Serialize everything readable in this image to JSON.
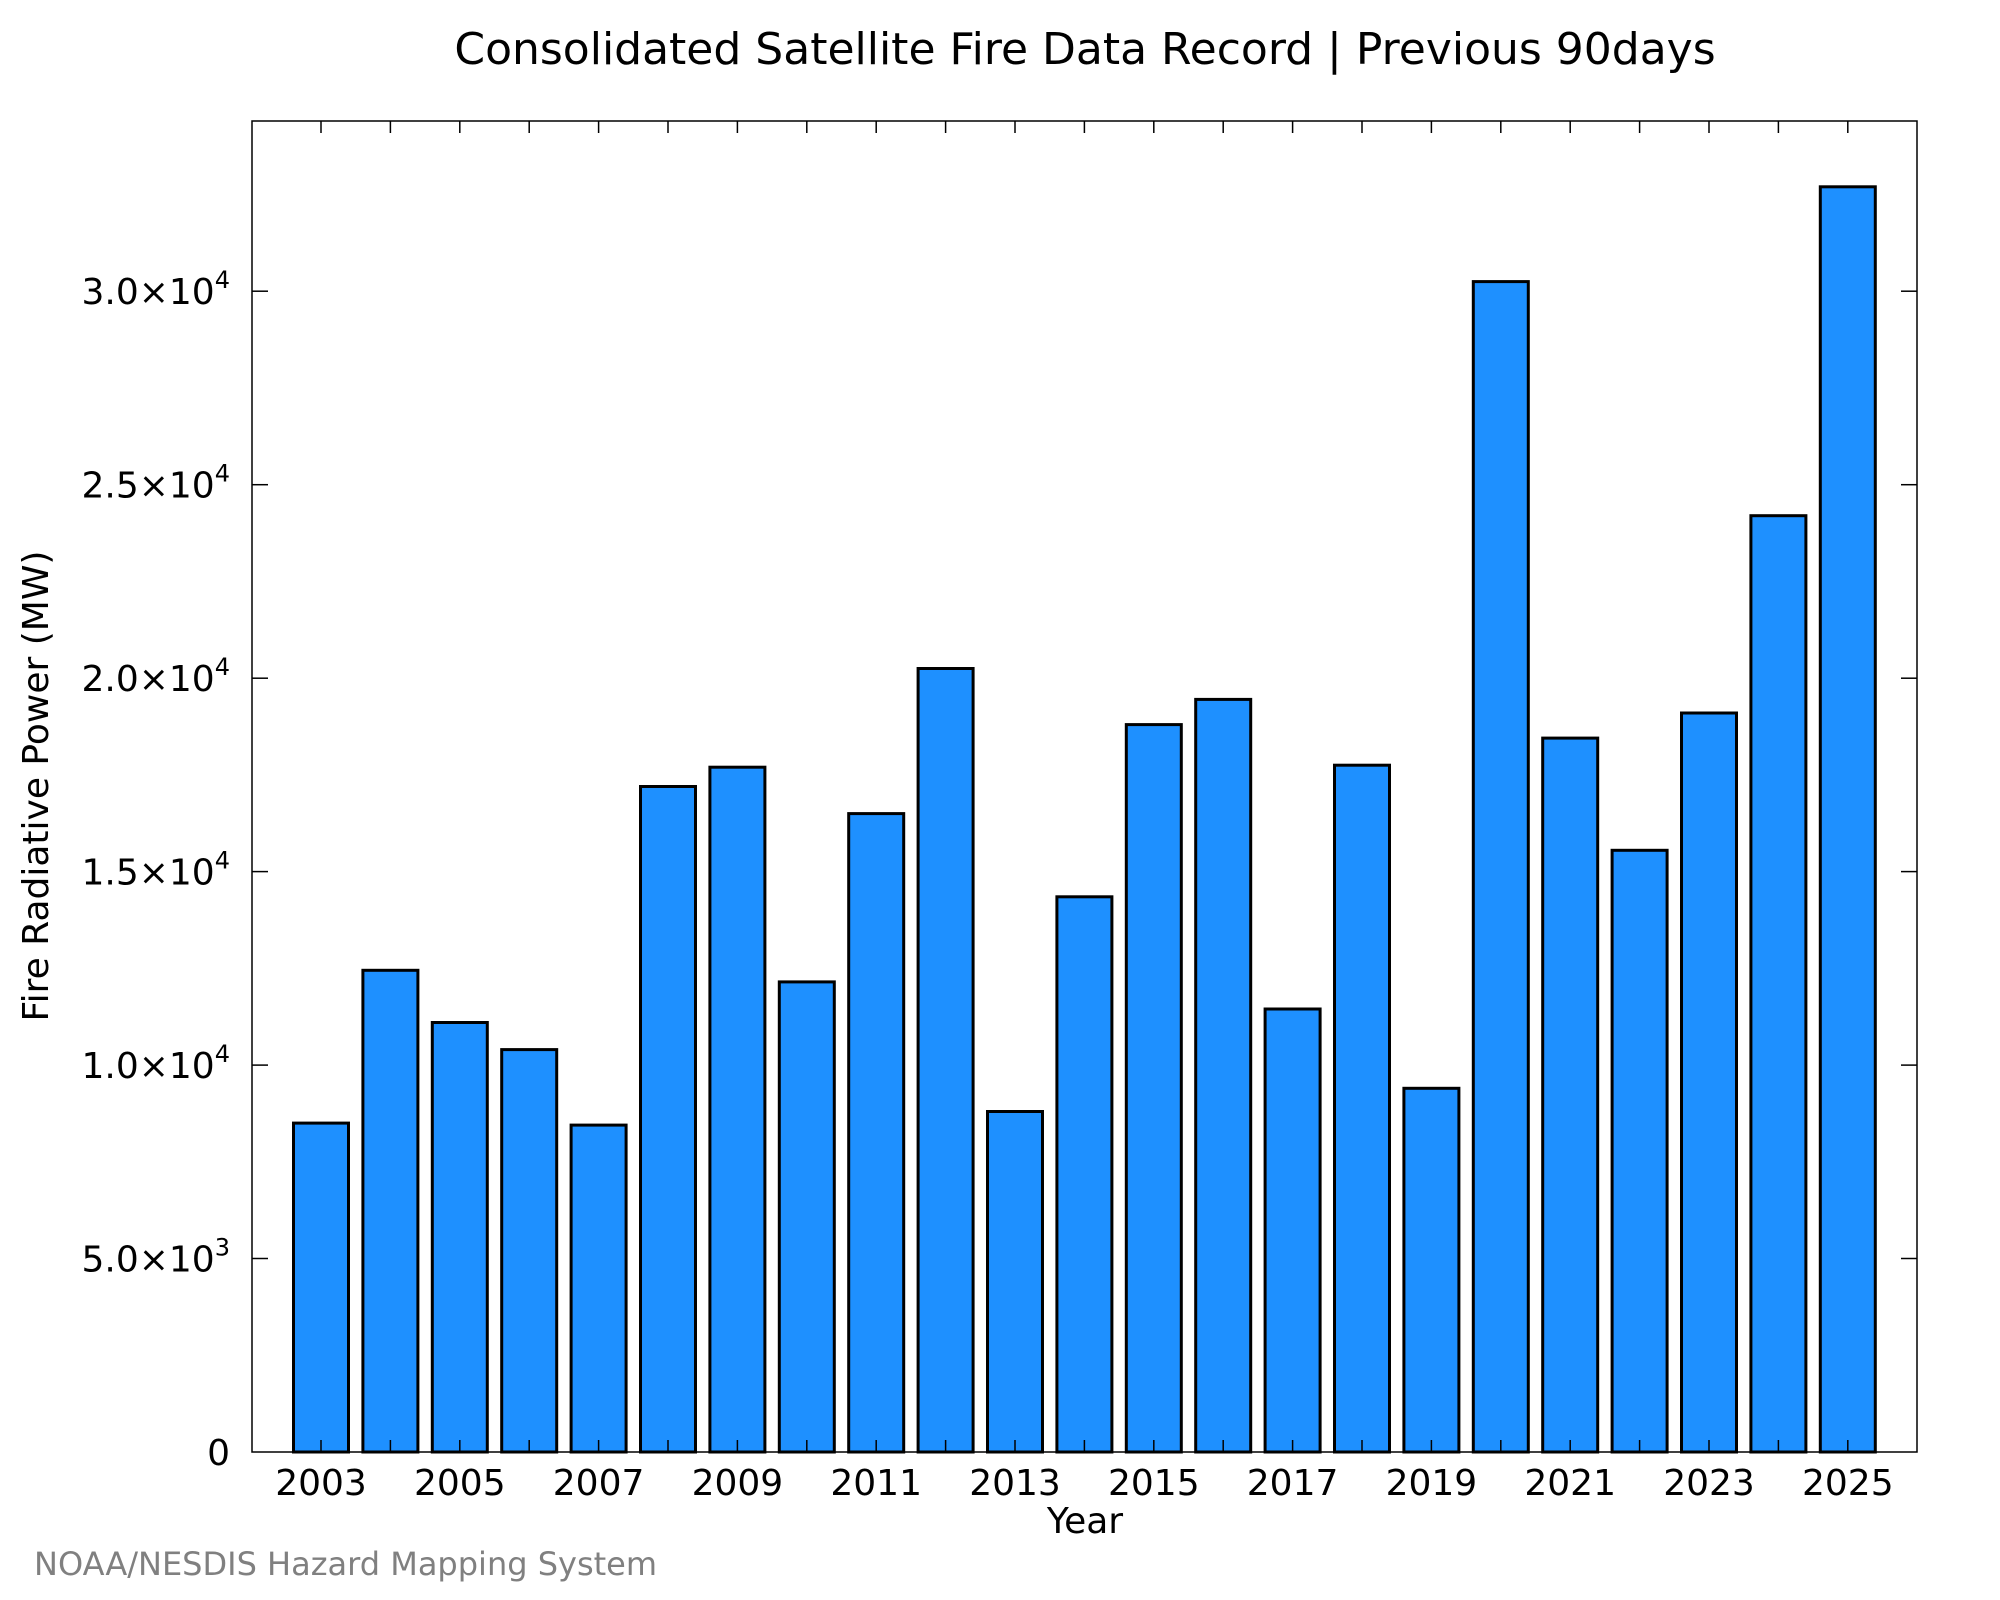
{
  "colors": {
    "bar_fill": "#1e90ff",
    "bar_stroke": "#000000",
    "credit": "#808080"
  },
  "credit": "NOAA/NESDIS Hazard Mapping System",
  "chart_data": {
    "type": "bar",
    "title": "Consolidated Satellite Fire Data Record | Previous 90days",
    "xlabel": "Year",
    "ylabel": "Fire Radiative Power (MW)",
    "categories": [
      "2003",
      "2004",
      "2005",
      "2006",
      "2007",
      "2008",
      "2009",
      "2010",
      "2011",
      "2012",
      "2013",
      "2014",
      "2015",
      "2016",
      "2017",
      "2018",
      "2019",
      "2020",
      "2021",
      "2022",
      "2023",
      "2024",
      "2025"
    ],
    "values": [
      8500,
      12450,
      11100,
      10400,
      8450,
      17200,
      17700,
      12150,
      16500,
      20250,
      8800,
      14350,
      18800,
      19450,
      11450,
      17750,
      9400,
      30250,
      18450,
      15550,
      19100,
      24200,
      32700
    ],
    "x_tick_labels": [
      "2003",
      "2005",
      "2007",
      "2009",
      "2011",
      "2013",
      "2015",
      "2017",
      "2019",
      "2021",
      "2023",
      "2025"
    ],
    "ylim": [
      0,
      34400
    ],
    "y_ticks": [
      {
        "value": 0,
        "mantissa": "0",
        "exponent": ""
      },
      {
        "value": 5000,
        "mantissa": "5.0×10",
        "exponent": "3"
      },
      {
        "value": 10000,
        "mantissa": "1.0×10",
        "exponent": "4"
      },
      {
        "value": 15000,
        "mantissa": "1.5×10",
        "exponent": "4"
      },
      {
        "value": 20000,
        "mantissa": "2.0×10",
        "exponent": "4"
      },
      {
        "value": 25000,
        "mantissa": "2.5×10",
        "exponent": "4"
      },
      {
        "value": 30000,
        "mantissa": "3.0×10",
        "exponent": "4"
      }
    ],
    "grid": false,
    "legend": "none"
  }
}
